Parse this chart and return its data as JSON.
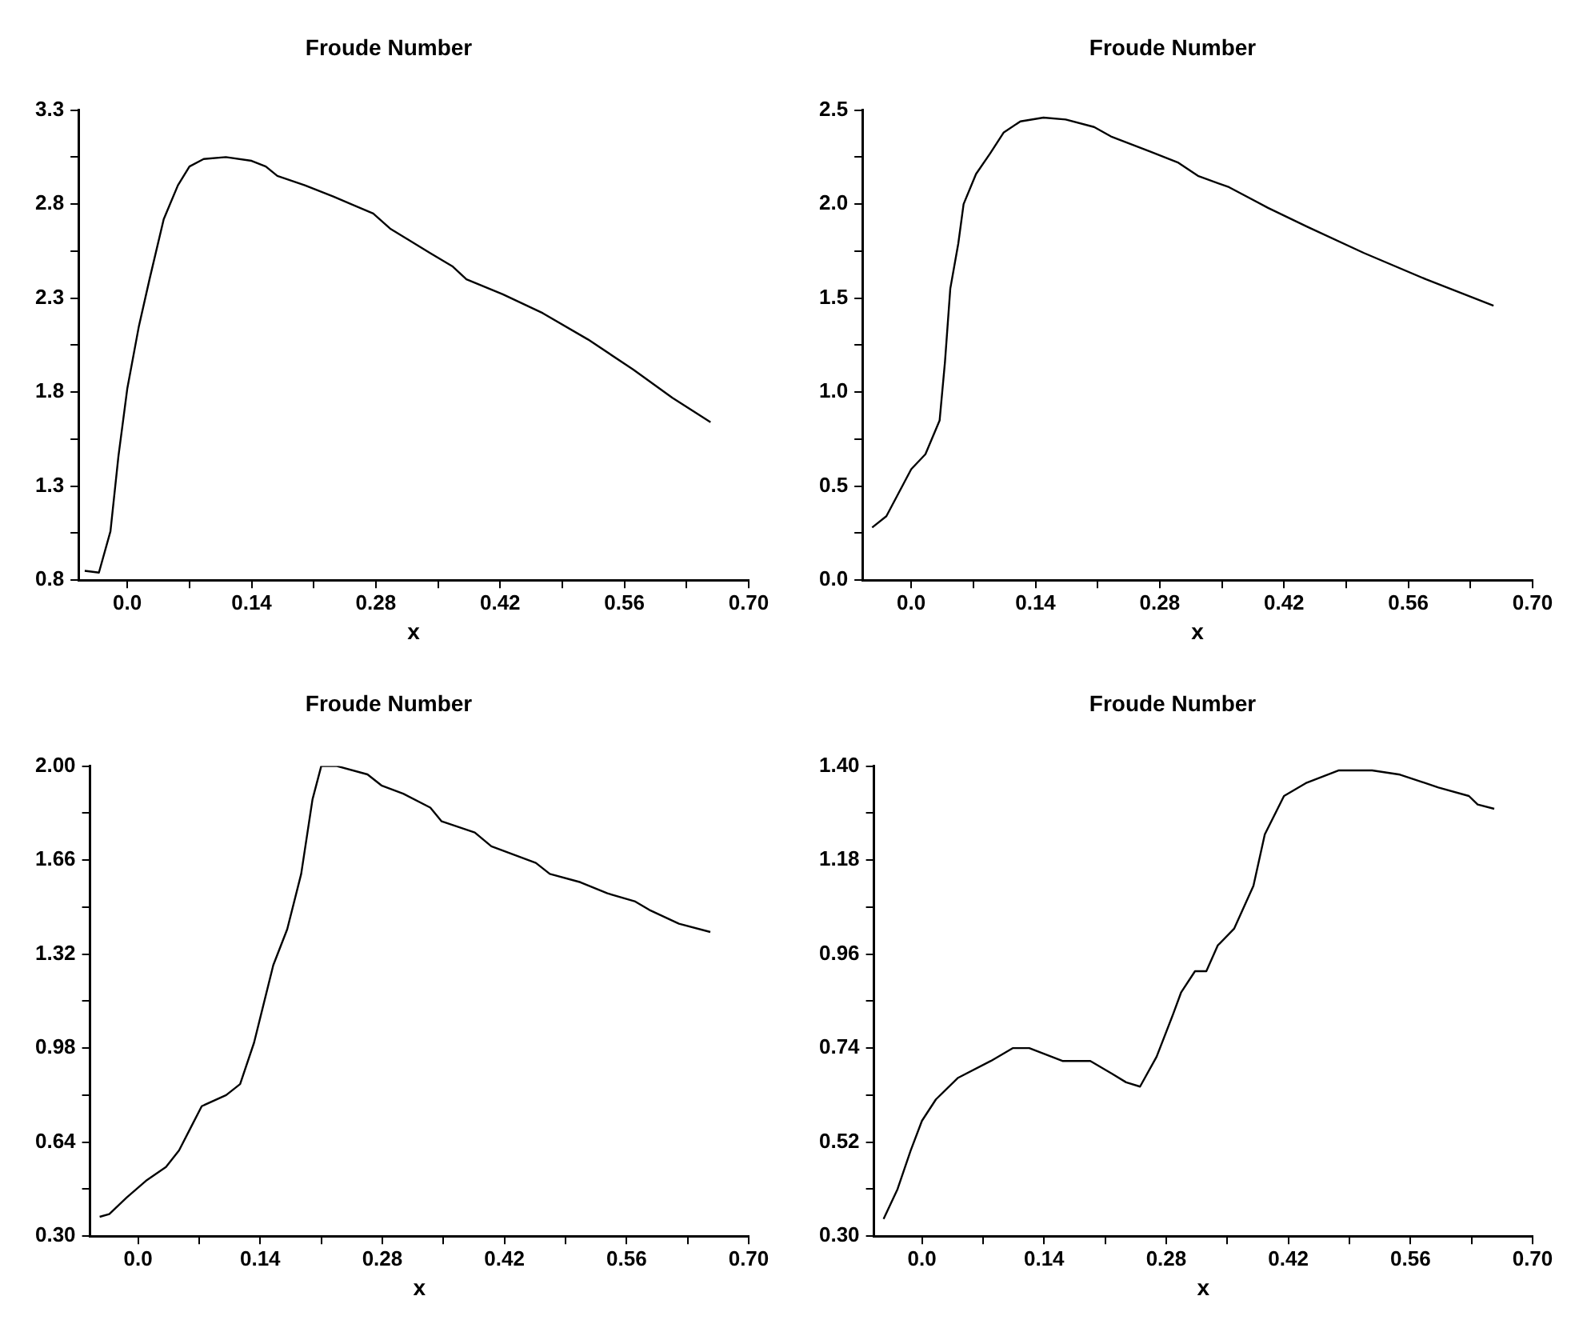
{
  "chart_data": [
    {
      "type": "line",
      "title": "Froude Number",
      "xlabel": "x",
      "color": "#000000",
      "xlim": [
        -0.055,
        0.7
      ],
      "xticks": [
        {
          "value": 0,
          "label": "0.0"
        },
        {
          "value": 0.07,
          "label": null
        },
        0.14,
        {
          "value": 0.21,
          "label": null
        },
        0.28,
        {
          "value": 0.35,
          "label": null
        },
        0.42,
        {
          "value": 0.49,
          "label": null
        },
        0.56,
        {
          "value": 0.63,
          "label": null
        },
        {
          "value": 0.7,
          "label": "0.70"
        }
      ],
      "ylim": [
        0.8,
        3.3
      ],
      "yticks": [
        0.8,
        {
          "value": 1.05,
          "label": null
        },
        1.3,
        {
          "value": 1.55,
          "label": null
        },
        1.8,
        {
          "value": 2.05,
          "label": null
        },
        2.3,
        {
          "value": 2.55,
          "label": null
        },
        2.8,
        {
          "value": 3.05,
          "label": null
        },
        3.3
      ],
      "x": [
        -0.048,
        -0.032,
        -0.019,
        -0.01,
        0.0,
        0.013,
        0.025,
        0.041,
        0.057,
        0.07,
        0.086,
        0.111,
        0.14,
        0.156,
        0.169,
        0.2,
        0.232,
        0.277,
        0.296,
        0.341,
        0.366,
        0.382,
        0.423,
        0.468,
        0.519,
        0.57,
        0.614,
        0.657
      ],
      "values": [
        0.85,
        0.84,
        1.06,
        1.46,
        1.82,
        2.15,
        2.4,
        2.72,
        2.9,
        3.0,
        3.04,
        3.05,
        3.03,
        3.0,
        2.95,
        2.9,
        2.84,
        2.75,
        2.67,
        2.54,
        2.47,
        2.4,
        2.32,
        2.22,
        2.08,
        1.92,
        1.77,
        1.64
      ]
    },
    {
      "type": "line",
      "title": "Froude Number",
      "xlabel": "x",
      "color": "#000000",
      "xlim": [
        -0.055,
        0.7
      ],
      "xticks": [
        {
          "value": 0,
          "label": "0.0"
        },
        {
          "value": 0.07,
          "label": null
        },
        0.14,
        {
          "value": 0.21,
          "label": null
        },
        0.28,
        {
          "value": 0.35,
          "label": null
        },
        0.42,
        {
          "value": 0.49,
          "label": null
        },
        0.56,
        {
          "value": 0.63,
          "label": null
        },
        {
          "value": 0.7,
          "label": "0.70"
        }
      ],
      "ylim": [
        0.0,
        2.5
      ],
      "yticks": [
        {
          "value": 0,
          "label": "0.0"
        },
        {
          "value": 0.25,
          "label": null
        },
        0.5,
        {
          "value": 0.75,
          "label": null
        },
        {
          "value": 1,
          "label": "1.0"
        },
        {
          "value": 1.25,
          "label": null
        },
        1.5,
        {
          "value": 1.75,
          "label": null
        },
        {
          "value": 2,
          "label": "2.0"
        },
        {
          "value": 2.25,
          "label": null
        },
        2.5
      ],
      "x": [
        -0.044,
        -0.028,
        0.0,
        0.016,
        0.032,
        0.038,
        0.044,
        0.053,
        0.059,
        0.073,
        0.089,
        0.104,
        0.123,
        0.149,
        0.174,
        0.206,
        0.225,
        0.269,
        0.301,
        0.323,
        0.358,
        0.402,
        0.446,
        0.51,
        0.58,
        0.656
      ],
      "values": [
        0.28,
        0.34,
        0.59,
        0.67,
        0.85,
        1.16,
        1.55,
        1.79,
        2.0,
        2.16,
        2.27,
        2.38,
        2.44,
        2.46,
        2.45,
        2.41,
        2.36,
        2.28,
        2.22,
        2.15,
        2.09,
        1.98,
        1.88,
        1.74,
        1.6,
        1.46
      ]
    },
    {
      "type": "line",
      "title": "Froude Number",
      "xlabel": "x",
      "color": "#000000",
      "xlim": [
        -0.055,
        0.7
      ],
      "xticks": [
        {
          "value": 0,
          "label": "0.0"
        },
        {
          "value": 0.07,
          "label": null
        },
        0.14,
        {
          "value": 0.21,
          "label": null
        },
        0.28,
        {
          "value": 0.35,
          "label": null
        },
        0.42,
        {
          "value": 0.49,
          "label": null
        },
        0.56,
        {
          "value": 0.63,
          "label": null
        },
        {
          "value": 0.7,
          "label": "0.70"
        }
      ],
      "ylim": [
        0.3,
        2.0
      ],
      "yticks": [
        {
          "value": 0.3,
          "label": "0.30"
        },
        {
          "value": 0.47,
          "label": null
        },
        0.64,
        {
          "value": 0.81,
          "label": null
        },
        0.98,
        {
          "value": 1.15,
          "label": null
        },
        1.32,
        {
          "value": 1.49,
          "label": null
        },
        1.66,
        {
          "value": 1.83,
          "label": null
        },
        {
          "value": 2.0,
          "label": "2.00"
        }
      ],
      "x": [
        -0.044,
        -0.033,
        -0.013,
        0.009,
        0.032,
        0.047,
        0.06,
        0.073,
        0.101,
        0.117,
        0.133,
        0.155,
        0.171,
        0.187,
        0.2,
        0.21,
        0.228,
        0.263,
        0.279,
        0.304,
        0.335,
        0.348,
        0.386,
        0.405,
        0.456,
        0.472,
        0.507,
        0.538,
        0.57,
        0.586,
        0.62,
        0.656
      ],
      "values": [
        0.37,
        0.38,
        0.44,
        0.5,
        0.55,
        0.61,
        0.69,
        0.77,
        0.81,
        0.85,
        1.0,
        1.28,
        1.41,
        1.61,
        1.88,
        2.0,
        2.0,
        1.97,
        1.93,
        1.9,
        1.85,
        1.8,
        1.76,
        1.71,
        1.65,
        1.61,
        1.58,
        1.54,
        1.51,
        1.48,
        1.43,
        1.4
      ]
    },
    {
      "type": "line",
      "title": "Froude Number",
      "xlabel": "x",
      "color": "#000000",
      "xlim": [
        -0.055,
        0.7
      ],
      "xticks": [
        {
          "value": 0,
          "label": "0.0"
        },
        {
          "value": 0.07,
          "label": null
        },
        0.14,
        {
          "value": 0.21,
          "label": null
        },
        0.28,
        {
          "value": 0.35,
          "label": null
        },
        0.42,
        {
          "value": 0.49,
          "label": null
        },
        0.56,
        {
          "value": 0.63,
          "label": null
        },
        {
          "value": 0.7,
          "label": "0.70"
        }
      ],
      "ylim": [
        0.3,
        1.4
      ],
      "yticks": [
        {
          "value": 0.3,
          "label": "0.30"
        },
        {
          "value": 0.41,
          "label": null
        },
        0.52,
        {
          "value": 0.63,
          "label": null
        },
        0.74,
        {
          "value": 0.85,
          "label": null
        },
        0.96,
        {
          "value": 1.07,
          "label": null
        },
        1.18,
        {
          "value": 1.29,
          "label": null
        },
        {
          "value": 1.4,
          "label": "1.40"
        }
      ],
      "x": [
        -0.044,
        -0.028,
        -0.013,
        0.0,
        0.016,
        0.041,
        0.079,
        0.104,
        0.123,
        0.161,
        0.193,
        0.218,
        0.234,
        0.25,
        0.269,
        0.288,
        0.297,
        0.313,
        0.326,
        0.339,
        0.358,
        0.38,
        0.393,
        0.415,
        0.44,
        0.478,
        0.516,
        0.548,
        0.592,
        0.627,
        0.637,
        0.656
      ],
      "values": [
        0.34,
        0.41,
        0.5,
        0.57,
        0.62,
        0.67,
        0.71,
        0.74,
        0.74,
        0.71,
        0.71,
        0.68,
        0.66,
        0.65,
        0.72,
        0.82,
        0.87,
        0.92,
        0.92,
        0.98,
        1.02,
        1.12,
        1.24,
        1.33,
        1.36,
        1.39,
        1.39,
        1.38,
        1.35,
        1.33,
        1.31,
        1.3
      ]
    }
  ]
}
